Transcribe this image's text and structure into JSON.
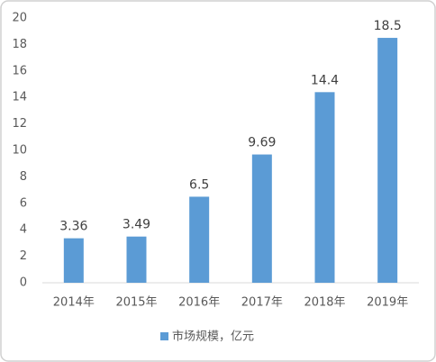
{
  "chart_data": {
    "type": "bar",
    "categories": [
      "2014年",
      "2015年",
      "2016年",
      "2017年",
      "2018年",
      "2019年"
    ],
    "series": [
      {
        "name": "市场规模，亿元",
        "color": "#5b9bd5",
        "values": [
          3.36,
          3.49,
          6.5,
          9.69,
          14.4,
          18.5
        ]
      }
    ],
    "ylim": [
      0,
      20
    ],
    "yticks": [
      0,
      2,
      4,
      6,
      8,
      10,
      12,
      14,
      16,
      18,
      20
    ],
    "grid": false,
    "legend": "bottom"
  }
}
